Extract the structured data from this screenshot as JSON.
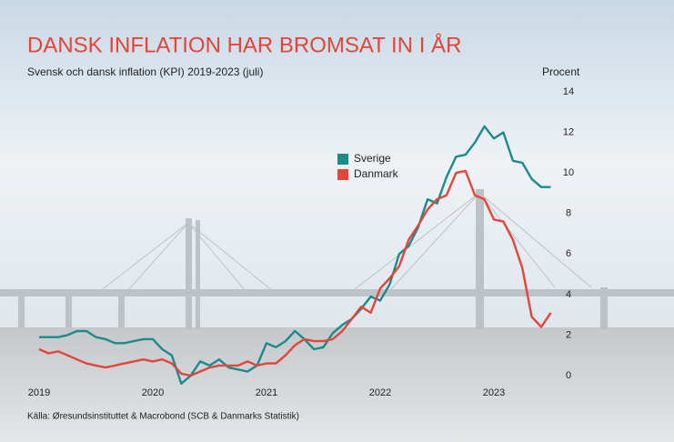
{
  "chart_data": {
    "type": "line",
    "title": "DANSK INFLATION HAR BROMSAT IN I ÅR",
    "subtitle": "Svensk och dansk inflation (KPI) 2019-2023 (juli)",
    "y_axis_label": "Procent",
    "source": "Källa: Øresundsinstituttet & Macrobond (SCB & Danmarks Statistik)",
    "x": [
      2019,
      2019.083,
      2019.167,
      2019.25,
      2019.333,
      2019.417,
      2019.5,
      2019.583,
      2019.667,
      2019.75,
      2019.833,
      2019.917,
      2020,
      2020.083,
      2020.167,
      2020.25,
      2020.333,
      2020.417,
      2020.5,
      2020.583,
      2020.667,
      2020.75,
      2020.833,
      2020.917,
      2021,
      2021.083,
      2021.167,
      2021.25,
      2021.333,
      2021.417,
      2021.5,
      2021.583,
      2021.667,
      2021.75,
      2021.833,
      2021.917,
      2022,
      2022.083,
      2022.167,
      2022.25,
      2022.333,
      2022.417,
      2022.5,
      2022.583,
      2022.667,
      2022.75,
      2022.833,
      2022.917,
      2023,
      2023.083,
      2023.167,
      2023.25,
      2023.333,
      2023.417,
      2023.5
    ],
    "series": [
      {
        "name": "Sverige",
        "color": "#1b8a8c",
        "values": [
          1.9,
          1.9,
          1.9,
          2.0,
          2.2,
          2.2,
          1.9,
          1.8,
          1.6,
          1.6,
          1.7,
          1.8,
          1.8,
          1.3,
          1.0,
          -0.4,
          0.0,
          0.7,
          0.5,
          0.8,
          0.4,
          0.3,
          0.2,
          0.5,
          1.6,
          1.4,
          1.7,
          2.2,
          1.8,
          1.3,
          1.4,
          2.1,
          2.5,
          2.8,
          3.3,
          3.9,
          3.7,
          4.5,
          6.0,
          6.4,
          7.3,
          8.7,
          8.5,
          9.8,
          10.8,
          10.9,
          11.5,
          12.3,
          11.7,
          12.0,
          10.6,
          10.5,
          9.7,
          9.3,
          9.3
        ]
      },
      {
        "name": "Danmark",
        "color": "#e2453a",
        "values": [
          1.3,
          1.1,
          1.2,
          1.0,
          0.8,
          0.6,
          0.5,
          0.4,
          0.5,
          0.6,
          0.7,
          0.8,
          0.7,
          0.8,
          0.6,
          0.1,
          0.0,
          0.2,
          0.4,
          0.5,
          0.5,
          0.5,
          0.7,
          0.5,
          0.6,
          0.6,
          1.0,
          1.5,
          1.8,
          1.7,
          1.7,
          1.8,
          2.2,
          2.8,
          3.4,
          3.1,
          4.3,
          4.8,
          5.4,
          6.7,
          7.4,
          8.2,
          8.7,
          8.9,
          10.0,
          10.1,
          8.9,
          8.7,
          7.7,
          7.6,
          6.7,
          5.3,
          2.9,
          2.4,
          3.1
        ]
      }
    ],
    "xlim": [
      2019,
      2023.5
    ],
    "xticks": [
      2019,
      2020,
      2021,
      2022,
      2023
    ],
    "ylim": [
      0,
      14
    ],
    "yticks": [
      0,
      2,
      4,
      6,
      8,
      10,
      12,
      14
    ],
    "legend": "center"
  }
}
